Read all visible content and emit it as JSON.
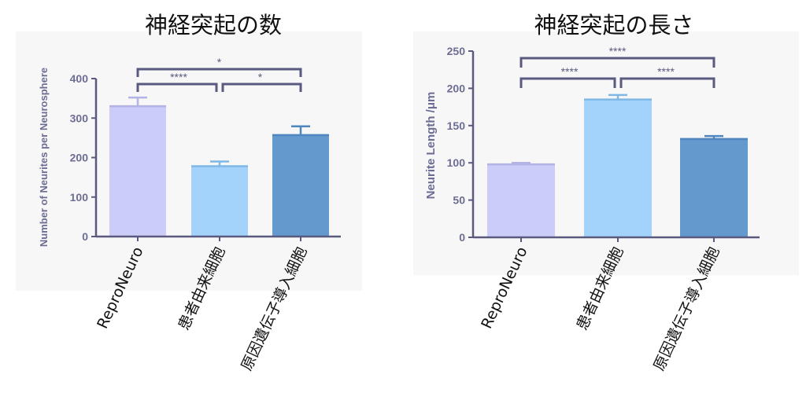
{
  "chart_data": [
    {
      "type": "bar",
      "title": "神経突起の数",
      "xlabel": "",
      "ylabel": "Number of Neurites per Neurosphere",
      "categories": [
        "ReproNeuro",
        "患者由来細胞",
        "原因遺伝子導入細胞"
      ],
      "values": [
        330,
        178,
        257
      ],
      "errors": [
        22,
        12,
        22
      ],
      "ylim": [
        0,
        400
      ],
      "yticks": [
        0,
        100,
        200,
        300,
        400
      ],
      "grid": false,
      "significance": [
        {
          "from": 0,
          "to": 1,
          "label": "****"
        },
        {
          "from": 1,
          "to": 2,
          "label": "*"
        },
        {
          "from": 0,
          "to": 2,
          "label": "*"
        }
      ]
    },
    {
      "type": "bar",
      "title": "神経突起の長さ",
      "xlabel": "",
      "ylabel": "Neurite Length /μm",
      "categories": [
        "ReproNeuro",
        "患者由来細胞",
        "原因遺伝子導入細胞"
      ],
      "values": [
        98,
        185,
        132
      ],
      "errors": [
        2,
        6,
        4
      ],
      "ylim": [
        0,
        250
      ],
      "yticks": [
        0,
        50,
        100,
        150,
        200,
        250
      ],
      "grid": false,
      "significance": [
        {
          "from": 0,
          "to": 1,
          "label": "****"
        },
        {
          "from": 1,
          "to": 2,
          "label": "****"
        },
        {
          "from": 0,
          "to": 2,
          "label": "****"
        }
      ]
    }
  ],
  "colors": {
    "bar_fills": [
      "#ccccf9",
      "#a3d2fb",
      "#6399cd"
    ],
    "error_bars": [
      "#b3b3e6",
      "#7fb8e6",
      "#4f86bf"
    ],
    "axis": "#5a5a80",
    "axis_text": "#6d6d94",
    "panel_bg": "#f7f7f7"
  }
}
